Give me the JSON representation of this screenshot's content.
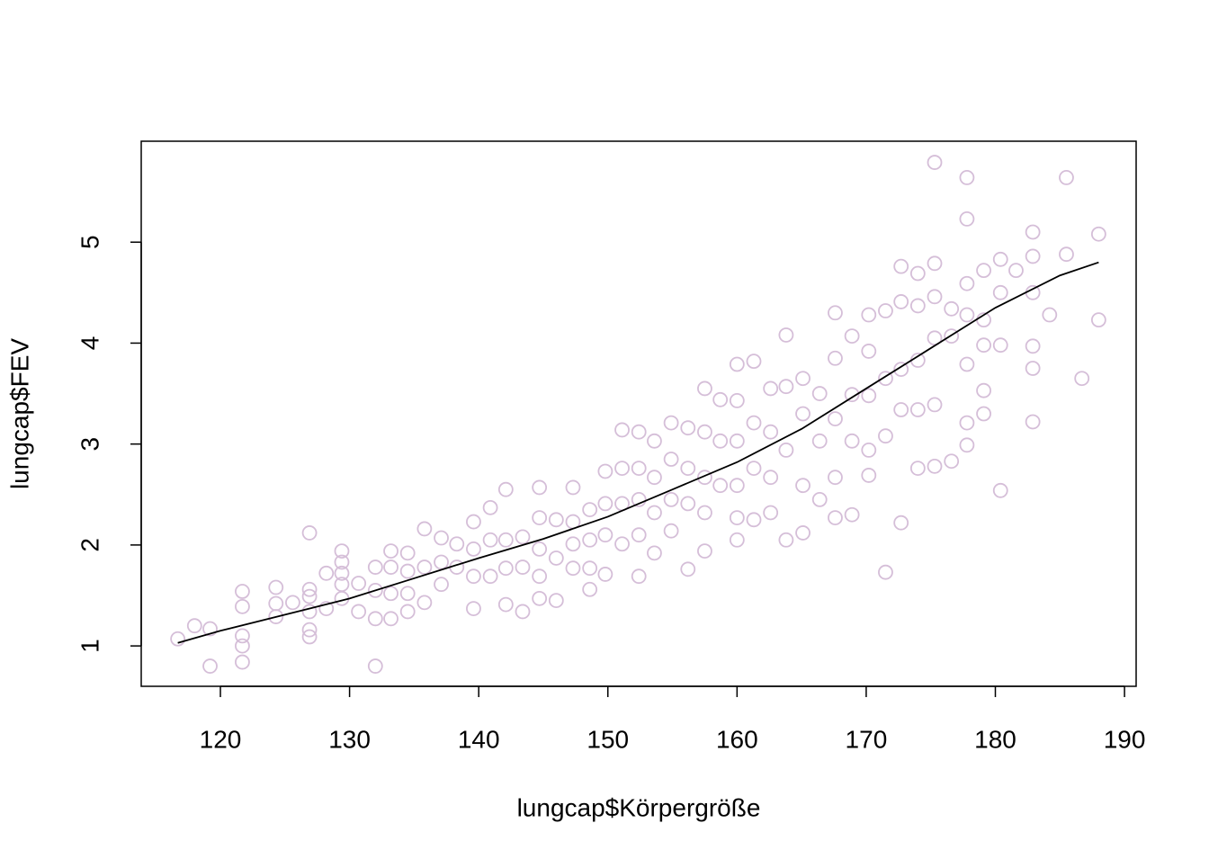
{
  "chart_data": {
    "type": "scatter",
    "xlabel": "lungcap$Körpergröße",
    "ylabel": "lungcap$FEV",
    "xlim": [
      113.87,
      190.9
    ],
    "ylim": [
      0.6,
      6.0
    ],
    "xticks": [
      120,
      130,
      140,
      150,
      160,
      170,
      180,
      190
    ],
    "yticks": [
      1,
      2,
      3,
      4,
      5
    ],
    "color": "#d5bed8",
    "line_color": "#000000",
    "x": [
      116.7,
      118.0,
      119.2,
      119.2,
      121.7,
      121.7,
      121.7,
      121.7,
      121.7,
      124.3,
      124.3,
      124.3,
      125.6,
      126.9,
      126.9,
      126.9,
      126.9,
      126.9,
      126.9,
      128.2,
      128.2,
      129.4,
      129.4,
      129.4,
      129.4,
      129.4,
      130.7,
      130.7,
      132.0,
      132.0,
      132.0,
      132.0,
      133.2,
      133.2,
      133.2,
      133.2,
      134.5,
      134.5,
      134.5,
      134.5,
      135.8,
      135.8,
      135.8,
      137.1,
      137.1,
      137.1,
      138.3,
      138.3,
      139.6,
      139.6,
      139.6,
      139.6,
      140.9,
      140.9,
      140.9,
      142.1,
      142.1,
      142.1,
      142.1,
      143.4,
      143.4,
      143.4,
      144.7,
      144.7,
      144.7,
      144.7,
      144.7,
      146.0,
      146.0,
      146.0,
      147.3,
      147.3,
      147.3,
      147.3,
      148.6,
      148.6,
      148.6,
      148.6,
      149.8,
      149.8,
      149.8,
      149.8,
      151.1,
      151.1,
      151.1,
      151.1,
      152.4,
      152.4,
      152.4,
      152.4,
      152.4,
      153.6,
      153.6,
      153.6,
      153.6,
      154.9,
      154.9,
      154.9,
      154.9,
      156.2,
      156.2,
      156.2,
      156.2,
      157.5,
      157.5,
      157.5,
      157.5,
      157.5,
      158.7,
      158.7,
      158.7,
      160.0,
      160.0,
      160.0,
      160.0,
      160.0,
      160.0,
      161.3,
      161.3,
      161.3,
      161.3,
      162.6,
      162.6,
      162.6,
      162.6,
      163.8,
      163.8,
      163.8,
      163.8,
      165.1,
      165.1,
      165.1,
      165.1,
      166.4,
      166.4,
      166.4,
      167.6,
      167.6,
      167.6,
      167.6,
      167.6,
      168.9,
      168.9,
      168.9,
      168.9,
      170.2,
      170.2,
      170.2,
      170.2,
      170.2,
      171.5,
      171.5,
      171.5,
      171.5,
      172.7,
      172.7,
      172.7,
      172.7,
      172.7,
      174.0,
      174.0,
      174.0,
      174.0,
      174.0,
      175.3,
      175.3,
      175.3,
      175.3,
      175.3,
      175.3,
      176.6,
      176.6,
      176.6,
      177.8,
      177.8,
      177.8,
      177.8,
      177.8,
      177.8,
      177.8,
      179.1,
      179.1,
      179.1,
      179.1,
      179.1,
      180.4,
      180.4,
      180.4,
      180.4,
      181.6,
      182.9,
      182.9,
      182.9,
      182.9,
      182.9,
      182.9,
      184.2,
      185.5,
      185.5,
      186.7,
      188.0,
      188.0
    ],
    "y": [
      1.07,
      1.2,
      1.17,
      0.8,
      1.54,
      1.39,
      1.1,
      1.0,
      0.84,
      1.58,
      1.42,
      1.29,
      1.43,
      2.12,
      1.56,
      1.49,
      1.34,
      1.16,
      1.09,
      1.72,
      1.37,
      1.94,
      1.83,
      1.72,
      1.61,
      1.47,
      1.62,
      1.34,
      1.78,
      1.55,
      1.27,
      0.8,
      1.94,
      1.78,
      1.52,
      1.27,
      1.92,
      1.74,
      1.52,
      1.34,
      2.16,
      1.78,
      1.43,
      2.07,
      1.83,
      1.61,
      2.01,
      1.78,
      2.23,
      1.96,
      1.69,
      1.37,
      2.37,
      2.05,
      1.69,
      2.55,
      2.05,
      1.77,
      1.41,
      2.08,
      1.78,
      1.34,
      2.57,
      2.27,
      1.96,
      1.69,
      1.47,
      2.25,
      1.87,
      1.45,
      2.57,
      2.23,
      2.01,
      1.77,
      2.35,
      2.05,
      1.77,
      1.56,
      2.73,
      2.41,
      2.1,
      1.71,
      3.14,
      2.76,
      2.41,
      2.01,
      3.12,
      2.76,
      2.45,
      2.1,
      1.69,
      3.03,
      2.67,
      2.32,
      1.92,
      3.21,
      2.85,
      2.45,
      2.14,
      3.16,
      2.76,
      2.41,
      1.76,
      3.55,
      3.12,
      2.67,
      2.32,
      1.94,
      3.44,
      3.03,
      2.59,
      3.79,
      3.43,
      3.03,
      2.59,
      2.27,
      2.05,
      3.82,
      3.21,
      2.76,
      2.25,
      3.55,
      3.12,
      2.67,
      2.32,
      4.08,
      3.57,
      2.94,
      2.05,
      3.65,
      3.3,
      2.59,
      2.12,
      3.5,
      3.03,
      2.45,
      4.3,
      3.85,
      3.25,
      2.67,
      2.27,
      4.07,
      3.49,
      3.03,
      2.3,
      4.28,
      3.92,
      3.48,
      2.94,
      2.69,
      4.32,
      3.65,
      3.08,
      1.73,
      4.76,
      4.41,
      3.74,
      3.34,
      2.22,
      4.69,
      4.37,
      3.83,
      3.34,
      2.76,
      5.79,
      4.79,
      4.46,
      4.05,
      3.39,
      2.78,
      4.34,
      4.07,
      2.83,
      5.64,
      5.23,
      4.59,
      4.28,
      3.79,
      3.21,
      2.99,
      4.72,
      4.23,
      3.98,
      3.53,
      3.3,
      4.83,
      4.5,
      3.98,
      2.54,
      4.72,
      5.1,
      4.86,
      4.5,
      3.97,
      3.75,
      3.22,
      4.28,
      5.64,
      4.88,
      3.65,
      5.08,
      4.23
    ],
    "smooth": {
      "x": [
        116.7,
        120,
        125,
        130,
        135,
        140,
        145,
        150,
        155,
        160,
        165,
        170,
        175,
        180,
        185,
        188
      ],
      "y": [
        1.03,
        1.15,
        1.31,
        1.47,
        1.67,
        1.87,
        2.06,
        2.28,
        2.55,
        2.82,
        3.15,
        3.55,
        3.95,
        4.35,
        4.67,
        4.8
      ]
    }
  }
}
